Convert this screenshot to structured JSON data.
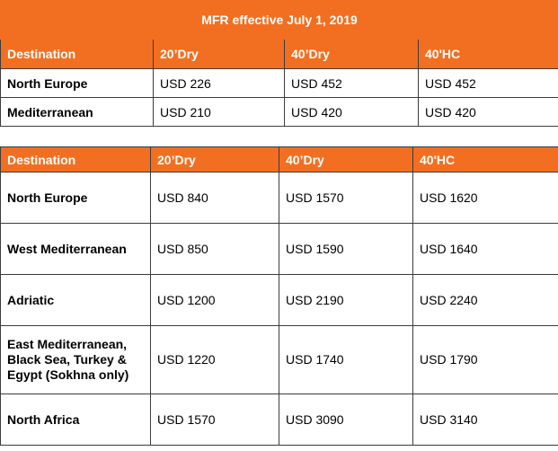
{
  "table1": {
    "title": "MFR effective July 1, 2019",
    "headers": [
      "Destination",
      "20’Dry",
      "40’Dry",
      "40'HC"
    ],
    "rows": [
      [
        "North Europe",
        "USD 226",
        "USD 452",
        "USD 452"
      ],
      [
        "Mediterranean",
        "USD 210",
        "USD 420",
        "USD 420"
      ]
    ]
  },
  "table2": {
    "headers": [
      "Destination",
      "20’Dry",
      "40’Dry",
      "40'HC"
    ],
    "rows": [
      [
        "North Europe",
        "USD 840",
        "USD 1570",
        "USD 1620"
      ],
      [
        "West Mediterranean",
        "USD 850",
        "USD 1590",
        "USD 1640"
      ],
      [
        "Adriatic",
        "USD 1200",
        "USD 2190",
        "USD 2240"
      ],
      [
        "East Mediterranean, Black Sea, Turkey & Egypt (Sokhna only)",
        "USD 1220",
        "USD 1740",
        "USD 1790"
      ],
      [
        "North Africa",
        "USD 1570",
        "USD 3090",
        "USD 3140"
      ]
    ]
  },
  "colors": {
    "header_bg": "#f26f21",
    "header_text": "#ffffff",
    "border": "#3c3c3c"
  }
}
